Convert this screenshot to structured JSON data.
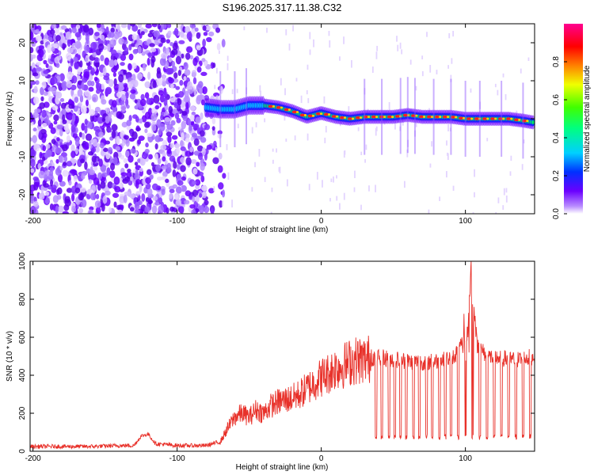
{
  "title": "S196.2025.317.11.38.C32",
  "chart_data": [
    {
      "type": "heatmap",
      "name": "spectrogram",
      "xlabel": "Height of straight line (km)",
      "ylabel": "Frequency (Hz)",
      "xlim": [
        -202,
        148
      ],
      "ylim": [
        -25,
        25
      ],
      "x_ticks": [
        -200,
        -100,
        0,
        100
      ],
      "y_ticks": [
        -20,
        -10,
        0,
        10,
        20
      ],
      "colorbar": {
        "label": "Normalized spectral amplitude",
        "range": [
          0,
          1
        ],
        "ticks": [
          0.0,
          0.2,
          0.4,
          0.6,
          0.8
        ]
      },
      "ridge": {
        "x": [
          -80,
          -70,
          -60,
          -50,
          -40,
          -30,
          -20,
          -10,
          0,
          10,
          20,
          30,
          40,
          50,
          60,
          70,
          80,
          90,
          100,
          110,
          120,
          130,
          140,
          148
        ],
        "freq": [
          3.0,
          2.5,
          2.5,
          3.5,
          3.5,
          3.0,
          2.0,
          0.5,
          1.5,
          0.5,
          0.0,
          0.5,
          0.5,
          0.5,
          1.0,
          0.5,
          0.5,
          0.5,
          0.0,
          0.0,
          0.0,
          0.0,
          -0.5,
          -1.0
        ]
      },
      "noise_region_x": [
        -202,
        -75
      ]
    },
    {
      "type": "line",
      "name": "snr",
      "xlabel": "Height of straight line (km)",
      "ylabel": "SNR (10 * v/v)",
      "xlim": [
        -202,
        148
      ],
      "ylim": [
        0,
        1000
      ],
      "x_ticks": [
        -200,
        -100,
        0,
        100
      ],
      "y_ticks": [
        0,
        200,
        400,
        600,
        800,
        1000
      ],
      "color": "#e8312a",
      "series": [
        {
          "name": "SNR envelope",
          "x": [
            -202,
            -180,
            -160,
            -140,
            -130,
            -125,
            -120,
            -115,
            -100,
            -80,
            -70,
            -65,
            -60,
            -55,
            -50,
            -45,
            -40,
            -35,
            -30,
            -25,
            -20,
            -15,
            -10,
            -5,
            0,
            5,
            10,
            15,
            20,
            25,
            30,
            35,
            38,
            45,
            55,
            65,
            75,
            85,
            92,
            98,
            102,
            104,
            108,
            115,
            125,
            135,
            148
          ],
          "y": [
            25,
            25,
            25,
            30,
            30,
            80,
            90,
            40,
            30,
            30,
            50,
            120,
            180,
            200,
            180,
            220,
            200,
            240,
            260,
            270,
            280,
            300,
            330,
            360,
            390,
            410,
            440,
            450,
            470,
            480,
            480,
            490,
            500,
            490,
            480,
            470,
            470,
            480,
            500,
            560,
            640,
            1000,
            560,
            500,
            490,
            480,
            500
          ]
        }
      ],
      "dropouts_x": [
        38,
        42,
        47,
        51,
        55,
        59,
        64,
        68,
        73,
        77,
        82,
        86,
        90,
        95,
        100,
        105,
        110,
        115,
        120,
        125,
        130,
        135,
        140,
        145
      ]
    }
  ]
}
